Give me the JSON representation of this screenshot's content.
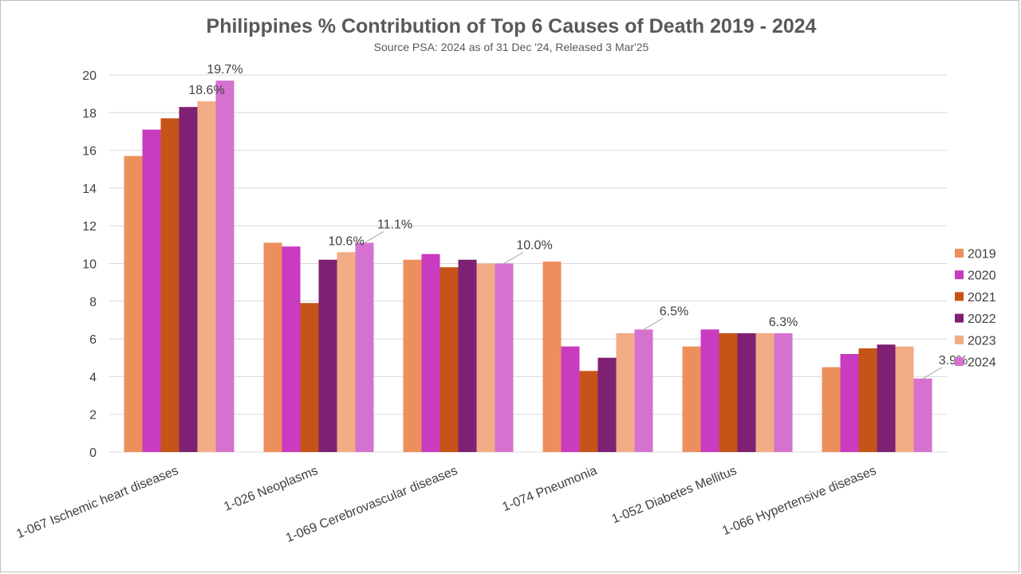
{
  "chart_data": {
    "type": "bar",
    "title": "Philippines % Contribution of Top 6 Causes of Death 2019 - 2024",
    "subtitle": "Source PSA: 2024 as of 31 Dec '24, Released 3 Mar'25",
    "xlabel": "",
    "ylabel": "",
    "ylim": [
      0,
      20
    ],
    "yticks": [
      0,
      2,
      4,
      6,
      8,
      10,
      12,
      14,
      16,
      18,
      20
    ],
    "grid": true,
    "legend_position": "right",
    "categories": [
      "1-067  Ischemic heart diseases",
      "1-026  Neoplasms",
      "1-069  Cerebrovascular diseases",
      "1-074  Pneumonia",
      "1-052  Diabetes Mellitus",
      "1-066  Hypertensive diseases"
    ],
    "series": [
      {
        "name": "2019",
        "color": "#ed8f5c",
        "values": [
          15.7,
          11.1,
          10.2,
          10.1,
          5.6,
          4.5
        ]
      },
      {
        "name": "2020",
        "color": "#c93bbf",
        "values": [
          17.1,
          10.9,
          10.5,
          5.6,
          6.5,
          5.2
        ]
      },
      {
        "name": "2021",
        "color": "#c65317",
        "values": [
          17.7,
          7.9,
          9.8,
          4.3,
          6.3,
          5.5
        ]
      },
      {
        "name": "2022",
        "color": "#7e2173",
        "values": [
          18.3,
          10.2,
          10.2,
          5.0,
          6.3,
          5.7
        ]
      },
      {
        "name": "2023",
        "color": "#f2ac86",
        "values": [
          18.6,
          10.6,
          10.0,
          6.3,
          6.3,
          5.6
        ]
      },
      {
        "name": "2024",
        "color": "#d572cf",
        "values": [
          19.7,
          11.1,
          10.0,
          6.5,
          6.3,
          3.9
        ]
      }
    ],
    "data_labels": [
      {
        "category": 0,
        "series": 4,
        "text": "18.6%",
        "leader": false
      },
      {
        "category": 0,
        "series": 5,
        "text": "19.7%",
        "leader": false
      },
      {
        "category": 1,
        "series": 4,
        "text": "10.6%",
        "leader": false
      },
      {
        "category": 1,
        "series": 5,
        "text": "11.1%",
        "leader": true
      },
      {
        "category": 2,
        "series": 5,
        "text": "10.0%",
        "leader": true
      },
      {
        "category": 3,
        "series": 5,
        "text": "6.5%",
        "leader": true
      },
      {
        "category": 4,
        "series": 5,
        "text": "6.3%",
        "leader": false
      },
      {
        "category": 5,
        "series": 5,
        "text": "3.9%",
        "leader": true
      }
    ]
  }
}
